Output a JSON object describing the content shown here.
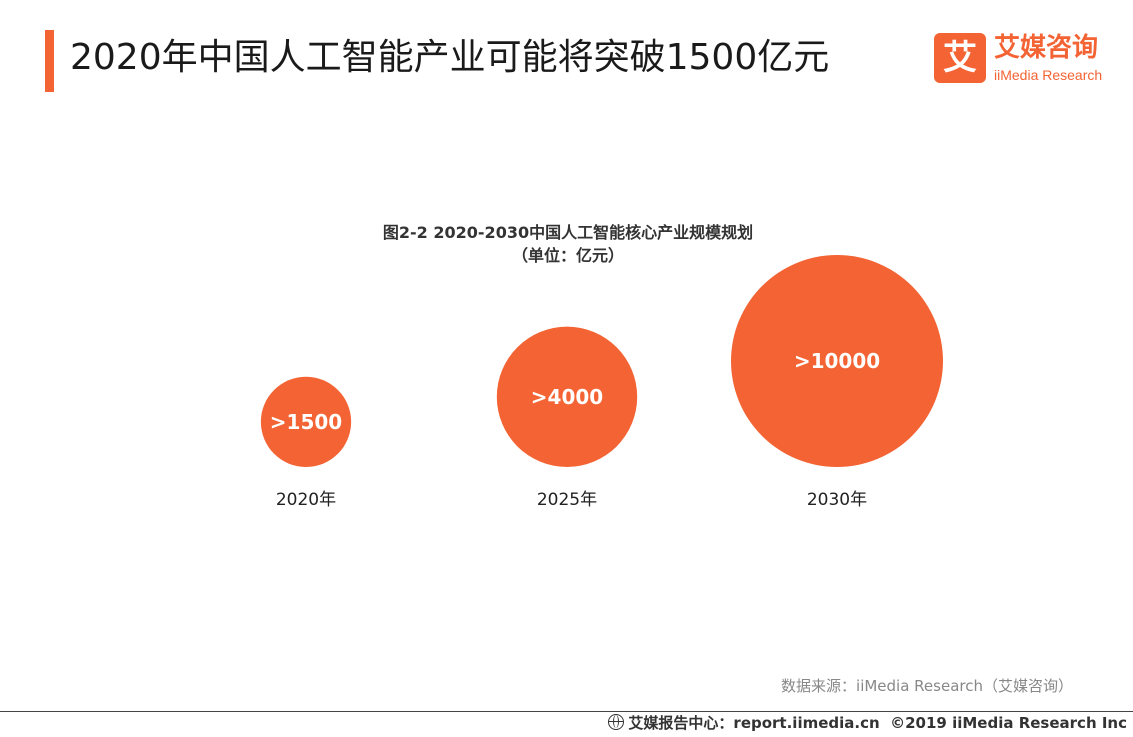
{
  "page": {
    "title": "2020年中国人工智能产业可能将突破1500亿元"
  },
  "logo": {
    "mark": "艾",
    "cn": "艾媒咨询",
    "en": "iiMedia Research"
  },
  "chart_data": {
    "type": "bubble",
    "title": "图2-2 2020-2030中国人工智能核心产业规模规划",
    "unit": "（单位：亿元）",
    "categories": [
      "2020年",
      "2025年",
      "2030年"
    ],
    "values": [
      1500,
      4000,
      10000
    ],
    "labels": [
      ">1500",
      ">4000",
      ">10000"
    ],
    "color": "#f46333",
    "label_color": "#ffffff"
  },
  "source": "数据来源：iiMedia Research（艾媒咨询）",
  "footer": {
    "report": "艾媒报告中心：report.iimedia.cn",
    "copyright": "©2019  iiMedia Research  Inc"
  }
}
